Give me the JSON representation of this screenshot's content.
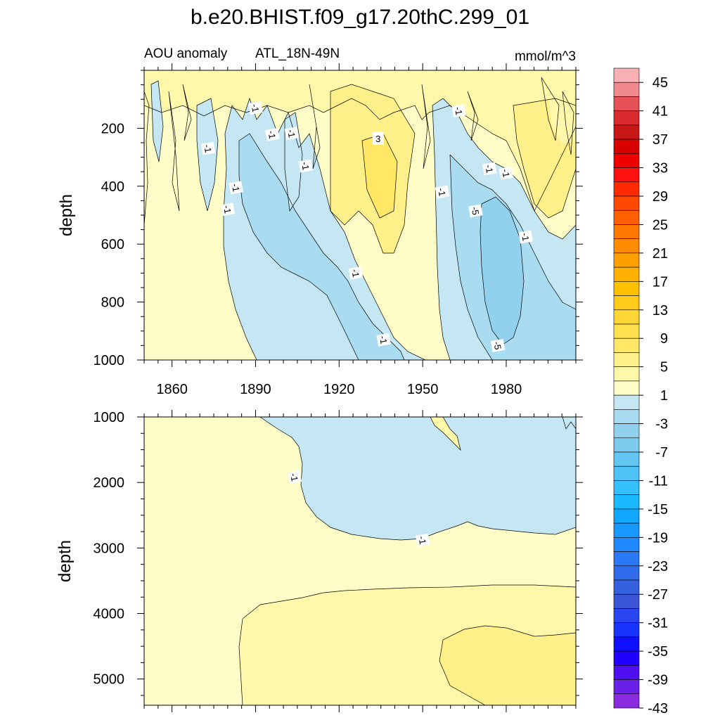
{
  "title": "b.e20.BHIST.f09_g17.20thC.299_01",
  "chart_data": {
    "type": "contour",
    "variable": "AOU anomaly",
    "region": "ATL_18N-49N",
    "units": "mmol/m^3",
    "x_ticks": [
      1860,
      1890,
      1920,
      1950,
      1980
    ],
    "xlim": [
      1850,
      2005
    ],
    "panels": [
      {
        "name": "upper",
        "ylabel": "depth",
        "ylim": [
          0,
          1000
        ],
        "y_ticks": [
          200,
          400,
          600,
          800,
          1000
        ],
        "contour_labels": [
          {
            "text": "-1",
            "x": 1873,
            "y": 270
          },
          {
            "text": "-1",
            "x": 1880,
            "y": 480
          },
          {
            "text": "-1",
            "x": 1883,
            "y": 405
          },
          {
            "text": "-1",
            "x": 1890,
            "y": 130
          },
          {
            "text": "-1",
            "x": 1896,
            "y": 222
          },
          {
            "text": "-1",
            "x": 1903,
            "y": 218
          },
          {
            "text": "-1",
            "x": 1908,
            "y": 330
          },
          {
            "text": "3",
            "x": 1934,
            "y": 235
          },
          {
            "text": "-1",
            "x": 1926,
            "y": 700
          },
          {
            "text": "-1",
            "x": 1936,
            "y": 930
          },
          {
            "text": "-1",
            "x": 1957,
            "y": 420
          },
          {
            "text": "-1",
            "x": 1963,
            "y": 140
          },
          {
            "text": "-1",
            "x": 1974,
            "y": 340
          },
          {
            "text": "-5",
            "x": 1969,
            "y": 485
          },
          {
            "text": "-1",
            "x": 1980,
            "y": 355
          },
          {
            "text": "-1",
            "x": 1987,
            "y": 575
          },
          {
            "text": "-5",
            "x": 1977,
            "y": 950
          }
        ]
      },
      {
        "name": "lower",
        "ylabel": "depth",
        "ylim": [
          1000,
          5400
        ],
        "y_ticks": [
          1000,
          2000,
          3000,
          4000,
          5000
        ],
        "contour_labels": [
          {
            "text": "-1",
            "x": 1904,
            "y": 1920
          },
          {
            "text": "-1",
            "x": 1950,
            "y": 2880
          }
        ]
      }
    ],
    "colorbar": {
      "labels": [
        "45",
        "41",
        "37",
        "33",
        "29",
        "25",
        "21",
        "17",
        "13",
        "9",
        "5",
        "1",
        "-3",
        "-7",
        "-11",
        "-15",
        "-19",
        "-23",
        "-27",
        "-31",
        "-35",
        "-39",
        "-43"
      ],
      "colors": [
        "#f9b0b4",
        "#f08a8e",
        "#e55157",
        "#d92a2f",
        "#c81717",
        "#d90000",
        "#ee0000",
        "#ff1010",
        "#ff2a00",
        "#ff4800",
        "#ff5f00",
        "#ff7800",
        "#ff8c00",
        "#ffa000",
        "#ffb000",
        "#ffc000",
        "#ffcc1a",
        "#ffd633",
        "#ffe04d",
        "#ffe866",
        "#fff08a",
        "#fff7aa",
        "#fffdc7",
        "#c5e7f4",
        "#a9dcf0",
        "#92d1ee",
        "#7ccaee",
        "#64c6f2",
        "#4ec3f7",
        "#33c0fb",
        "#1ab8ff",
        "#10a8ff",
        "#1899ff",
        "#1f88ff",
        "#2a78f6",
        "#2f6bea",
        "#3560e0",
        "#3a55d8",
        "#2845f0",
        "#1833ff",
        "#1010ff",
        "#2000ff",
        "#4e10f0",
        "#6a20e8",
        "#8a2be2"
      ]
    }
  }
}
